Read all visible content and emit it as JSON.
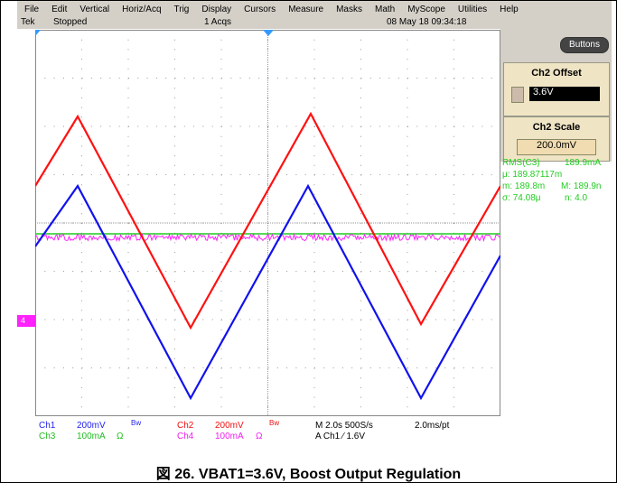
{
  "menu": [
    "File",
    "Edit",
    "Vertical",
    "Horiz/Acq",
    "Trig",
    "Display",
    "Cursors",
    "Measure",
    "Masks",
    "Math",
    "MyScope",
    "Utilities",
    "Help"
  ],
  "status": {
    "brand": "Tek",
    "state": "Stopped",
    "acqs": "1 Acqs",
    "datetime": "08 May 18 09:34:18"
  },
  "panel": {
    "button": "Buttons",
    "offset_title": "Ch2 Offset",
    "offset_value": "3.6V",
    "scale_title": "Ch2 Scale",
    "scale_value": "200.0mV"
  },
  "measurement": {
    "name": "RMS(C3)",
    "value": "189.9mA",
    "mean": "μ: 189.87117m",
    "min": "m: 189.8m",
    "max": "M: 189.9n",
    "sigma": "σ: 74.08μ",
    "count": "n: 4.0"
  },
  "marker": "4",
  "channels": [
    {
      "name": "Ch1",
      "scale": "200mV",
      "flag": "Bw"
    },
    {
      "name": "Ch3",
      "scale": "100mA",
      "flag": "Ω"
    },
    {
      "name": "Ch2",
      "scale": "200mV",
      "flag": "Bw"
    },
    {
      "name": "Ch4",
      "scale": "100mA",
      "flag": "Ω"
    }
  ],
  "timebase": {
    "horizontal": "M 2.0s 500S/s",
    "resolution": "2.0ms/pt",
    "trigger": "A  Ch1  ⁄  1.6V"
  },
  "caption": "図 26. VBAT1=3.6V, Boost Output Regulation"
}
